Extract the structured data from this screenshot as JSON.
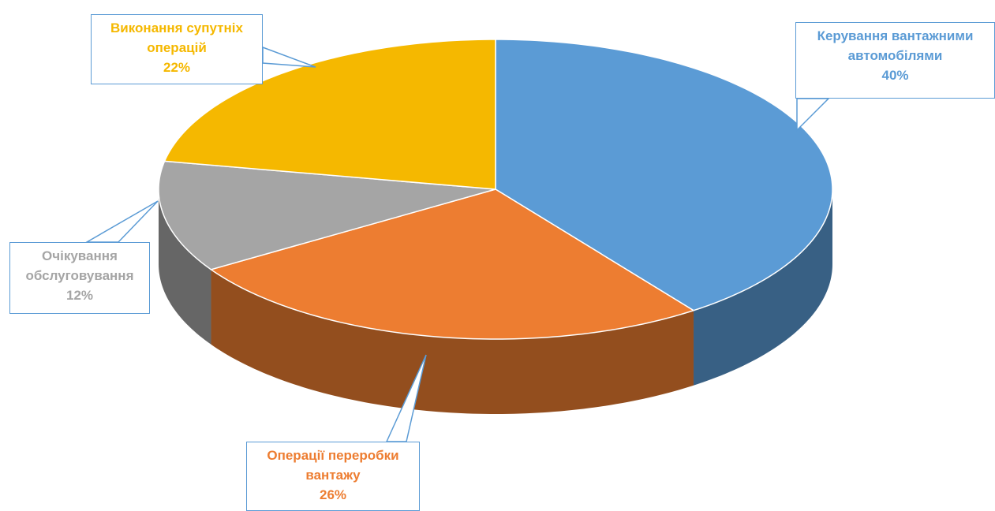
{
  "chart_data": {
    "type": "pie",
    "categories": [
      "Керування вантажними автомобілями",
      "Операції переробки вантажу",
      "Очікування обслуговування",
      "Виконання супутніх операцій"
    ],
    "values": [
      40,
      26,
      12,
      22
    ],
    "value_labels": [
      "40%",
      "26%",
      "12%",
      "22%"
    ],
    "colors": [
      "#5b9bd5",
      "#ed7d31",
      "#a5a5a5",
      "#f5b800"
    ]
  }
}
